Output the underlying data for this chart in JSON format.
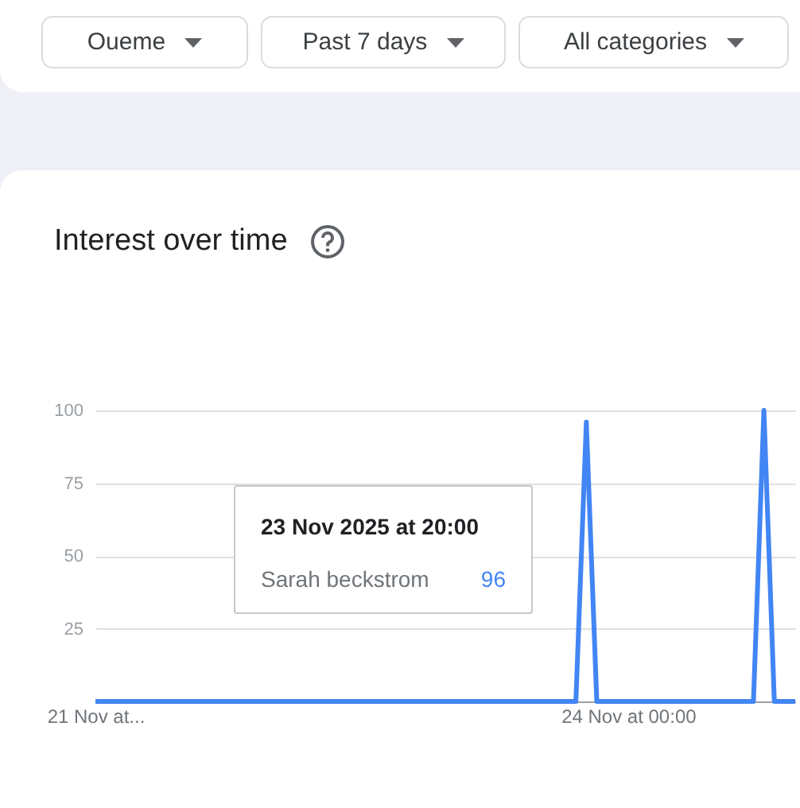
{
  "chart_data": {
    "type": "line",
    "title": "Interest over time",
    "x": [
      "2025-11-21T21:00",
      "2025-11-23T19:00",
      "2025-11-23T20:00",
      "2025-11-23T21:00",
      "2025-11-24T12:00",
      "2025-11-24T13:00",
      "2025-11-24T14:00",
      "2025-11-24T16:00"
    ],
    "series": [
      {
        "name": "Sarah beckstrom",
        "color": "#4285f4",
        "values": [
          0,
          0,
          96,
          0,
          0,
          100,
          0,
          0
        ]
      }
    ],
    "xlim": [
      "2025-11-21T21:00",
      "2025-11-24T16:00"
    ],
    "xticks": [
      {
        "value": "2025-11-21T21:00",
        "label": "21 Nov at..."
      },
      {
        "value": "2025-11-24T00:00",
        "label": "24 Nov at 00:00"
      }
    ],
    "ylim": [
      0,
      100
    ],
    "yticks": [
      25,
      50,
      75,
      100
    ],
    "grid": "y",
    "marker": "none",
    "line_style": "solid",
    "annotations": [
      "Oueme",
      "Past 7 days",
      "All categories",
      "23 Nov 2025 at 20:00",
      "96"
    ]
  }
}
